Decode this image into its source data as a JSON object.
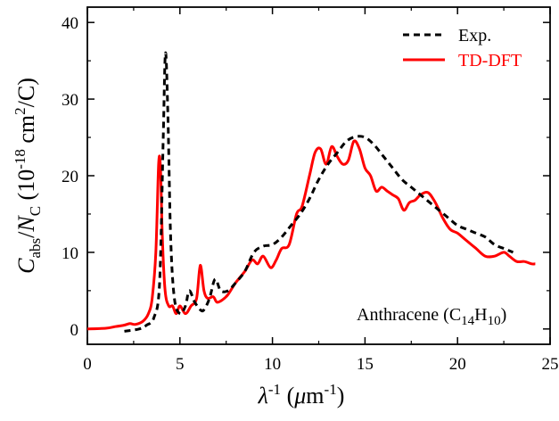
{
  "chart_data": {
    "type": "line",
    "xlabel": "λ-1 (μm-1)",
    "ylabel": "Cabs/NC (10-18 cm2/C)",
    "xlim": [
      0,
      25
    ],
    "ylim": [
      -2,
      42
    ],
    "x_ticks": [
      "0",
      "5",
      "10",
      "15",
      "20",
      "25"
    ],
    "y_ticks": [
      "0",
      "10",
      "20",
      "30",
      "40"
    ],
    "grid": false,
    "legend_position": "top-right",
    "annotation": "Anthracene (C14H10)",
    "series": [
      {
        "name": "Exp.",
        "style": "dashed",
        "color": "#000000",
        "points": [
          [
            2.0,
            -0.3
          ],
          [
            2.8,
            0.0
          ],
          [
            3.2,
            0.5
          ],
          [
            3.6,
            1.5
          ],
          [
            3.9,
            6
          ],
          [
            4.1,
            25
          ],
          [
            4.22,
            36
          ],
          [
            4.35,
            28
          ],
          [
            4.5,
            12
          ],
          [
            4.7,
            4
          ],
          [
            5.0,
            2
          ],
          [
            5.3,
            3
          ],
          [
            5.5,
            5
          ],
          [
            5.8,
            3.5
          ],
          [
            6.1,
            2.5
          ],
          [
            6.3,
            2.5
          ],
          [
            6.6,
            4
          ],
          [
            6.9,
            6.5
          ],
          [
            7.2,
            5
          ],
          [
            7.6,
            5
          ],
          [
            8.0,
            6
          ],
          [
            8.5,
            7.5
          ],
          [
            9.0,
            10
          ],
          [
            9.5,
            10.8
          ],
          [
            10.0,
            11
          ],
          [
            10.5,
            12
          ],
          [
            11.0,
            13.5
          ],
          [
            11.5,
            15
          ],
          [
            12.0,
            17
          ],
          [
            12.5,
            19.5
          ],
          [
            13.0,
            21.5
          ],
          [
            13.5,
            23
          ],
          [
            14.0,
            24.5
          ],
          [
            14.5,
            25.1
          ],
          [
            15.0,
            25
          ],
          [
            15.5,
            24
          ],
          [
            16.0,
            22.5
          ],
          [
            16.5,
            21
          ],
          [
            17.0,
            19.5
          ],
          [
            17.5,
            18.5
          ],
          [
            18.0,
            17.5
          ],
          [
            18.5,
            16.5
          ],
          [
            19.0,
            15.5
          ],
          [
            19.5,
            14.5
          ],
          [
            20.0,
            13.5
          ],
          [
            20.5,
            13
          ],
          [
            21.0,
            12.5
          ],
          [
            21.5,
            12
          ],
          [
            22.0,
            11
          ],
          [
            22.5,
            10.5
          ],
          [
            23.0,
            10
          ]
        ]
      },
      {
        "name": "TD-DFT",
        "style": "solid",
        "color": "#ff0000",
        "points": [
          [
            0.0,
            0.0
          ],
          [
            1.0,
            0.1
          ],
          [
            1.5,
            0.3
          ],
          [
            2.0,
            0.5
          ],
          [
            2.3,
            0.7
          ],
          [
            2.6,
            0.6
          ],
          [
            3.0,
            1.0
          ],
          [
            3.3,
            2.0
          ],
          [
            3.5,
            4
          ],
          [
            3.7,
            10
          ],
          [
            3.85,
            21.5
          ],
          [
            3.95,
            21
          ],
          [
            4.05,
            12
          ],
          [
            4.2,
            5
          ],
          [
            4.4,
            3
          ],
          [
            4.6,
            3
          ],
          [
            4.8,
            2
          ],
          [
            5.0,
            3
          ],
          [
            5.3,
            2
          ],
          [
            5.6,
            3
          ],
          [
            5.9,
            4
          ],
          [
            6.1,
            8.3
          ],
          [
            6.3,
            5
          ],
          [
            6.5,
            4
          ],
          [
            6.8,
            4.2
          ],
          [
            7.0,
            3.5
          ],
          [
            7.3,
            3.8
          ],
          [
            7.6,
            4.5
          ],
          [
            8.0,
            6.0
          ],
          [
            8.5,
            7.5
          ],
          [
            8.9,
            9
          ],
          [
            9.2,
            8.5
          ],
          [
            9.5,
            9.5
          ],
          [
            9.9,
            8
          ],
          [
            10.2,
            9
          ],
          [
            10.5,
            10.5
          ],
          [
            10.9,
            11
          ],
          [
            11.3,
            15
          ],
          [
            11.6,
            16
          ],
          [
            12.0,
            20
          ],
          [
            12.3,
            23
          ],
          [
            12.6,
            23.5
          ],
          [
            12.9,
            21.5
          ],
          [
            13.2,
            23.8
          ],
          [
            13.5,
            22.5
          ],
          [
            13.8,
            21.5
          ],
          [
            14.1,
            22
          ],
          [
            14.4,
            24.5
          ],
          [
            14.7,
            23.5
          ],
          [
            15.0,
            21
          ],
          [
            15.3,
            20
          ],
          [
            15.6,
            18
          ],
          [
            15.9,
            18.5
          ],
          [
            16.2,
            18
          ],
          [
            16.5,
            17.5
          ],
          [
            16.8,
            17
          ],
          [
            17.1,
            15.5
          ],
          [
            17.4,
            16.5
          ],
          [
            17.7,
            16.8
          ],
          [
            18.0,
            17.5
          ],
          [
            18.4,
            17.8
          ],
          [
            18.8,
            16.5
          ],
          [
            19.2,
            14.5
          ],
          [
            19.6,
            13
          ],
          [
            20.0,
            12.5
          ],
          [
            20.5,
            11.5
          ],
          [
            21.0,
            10.5
          ],
          [
            21.5,
            9.5
          ],
          [
            22.0,
            9.5
          ],
          [
            22.5,
            10
          ],
          [
            22.8,
            9.5
          ],
          [
            23.2,
            8.8
          ],
          [
            23.6,
            8.8
          ],
          [
            24.0,
            8.5
          ],
          [
            24.2,
            8.5
          ]
        ]
      }
    ]
  }
}
